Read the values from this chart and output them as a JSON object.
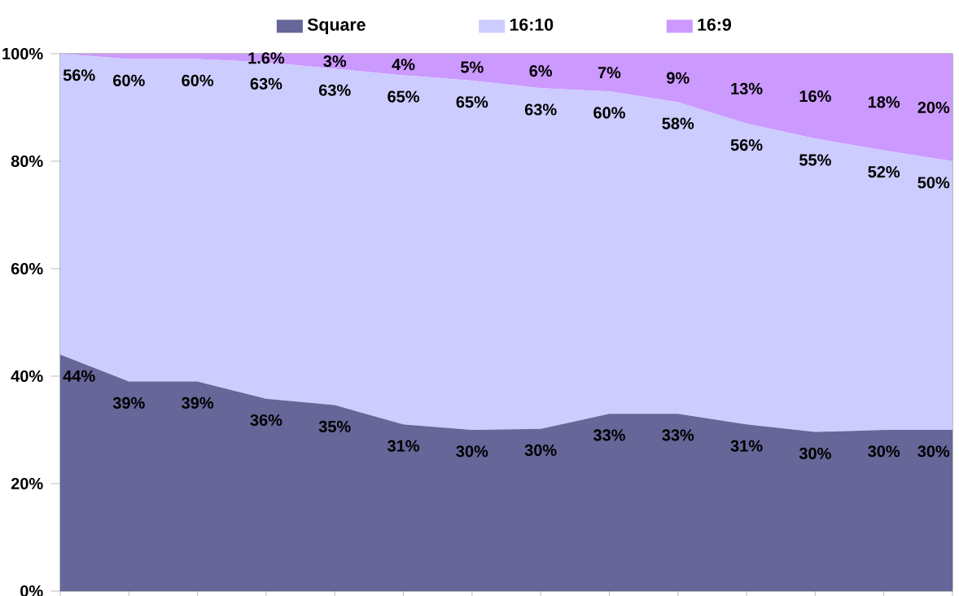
{
  "chart_data": {
    "type": "area",
    "stacked": true,
    "categories": [
      null,
      null,
      null,
      null,
      null,
      null,
      null,
      null,
      null,
      null,
      null,
      null,
      null,
      null
    ],
    "series": [
      {
        "name": "Square",
        "color": "#666699",
        "values": [
          44,
          39,
          39,
          35.8,
          34.6,
          31,
          30,
          30.2,
          33,
          33,
          31,
          29.6,
          30,
          30
        ],
        "value_labels": [
          "44%",
          "39%",
          "39%",
          "36%",
          "35%",
          "31%",
          "30%",
          "30%",
          "33%",
          "33%",
          "31%",
          "30%",
          "30%",
          "30%"
        ]
      },
      {
        "name": "16:10",
        "color": "#ccccff",
        "values": [
          56,
          60,
          60,
          62.6,
          62.6,
          65,
          65,
          63.4,
          60,
          58,
          56,
          54.6,
          52,
          50
        ],
        "value_labels": [
          "56%",
          "60%",
          "60%",
          "63%",
          "63%",
          "65%",
          "65%",
          "63%",
          "60%",
          "58%",
          "56%",
          "55%",
          "52%",
          "50%"
        ]
      },
      {
        "name": "16:9",
        "color": "#cc99ff",
        "values": [
          0,
          1,
          1,
          1.6,
          2.8,
          4,
          5,
          6.4,
          7,
          9,
          13,
          15.8,
          18,
          20
        ],
        "value_labels": [
          null,
          null,
          null,
          "1.6%",
          "3%",
          "4%",
          "5%",
          "6%",
          "7%",
          "9%",
          "13%",
          "16%",
          "18%",
          "20%"
        ]
      }
    ],
    "ylim": [
      0,
      100
    ],
    "yticks": [
      {
        "value": 0,
        "label": "0%"
      },
      {
        "value": 20,
        "label": "20%"
      },
      {
        "value": 40,
        "label": "40%"
      },
      {
        "value": 60,
        "label": "60%"
      },
      {
        "value": 80,
        "label": "80%"
      },
      {
        "value": 100,
        "label": "100%"
      }
    ],
    "legend": "top"
  }
}
